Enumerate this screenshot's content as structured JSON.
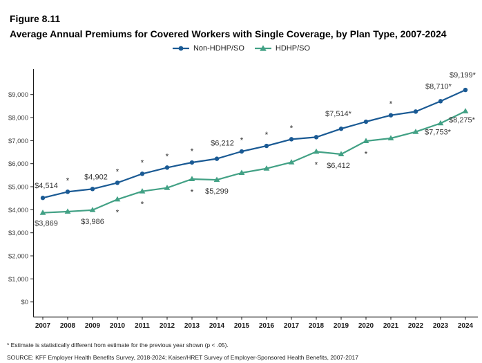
{
  "figure": {
    "number": "Figure 8.11",
    "title": "Average Annual Premiums for Covered Workers with Single Coverage, by Plan Type, 2007-2024"
  },
  "chart_data": {
    "type": "line",
    "title": "Average Annual Premiums for Covered Workers with Single Coverage, by Plan Type, 2007-2024",
    "xlabel": "",
    "ylabel": "",
    "ylim": [
      0,
      9000
    ],
    "ytick_step": 1000,
    "yticks": [
      "$0",
      "$1,000",
      "$2,000",
      "$3,000",
      "$4,000",
      "$5,000",
      "$6,000",
      "$7,000",
      "$8,000",
      "$9,000"
    ],
    "grid": false,
    "legend_position": "top-center",
    "x": [
      2007,
      2008,
      2009,
      2010,
      2011,
      2012,
      2013,
      2014,
      2015,
      2016,
      2017,
      2018,
      2019,
      2020,
      2021,
      2022,
      2023,
      2024
    ],
    "series": [
      {
        "name": "Non-HDHP/SO",
        "color": "#1A5A94",
        "marker": "circle",
        "values": [
          4514,
          4780,
          4902,
          5170,
          5560,
          5830,
          6050,
          6212,
          6530,
          6770,
          7060,
          7150,
          7514,
          7820,
          8100,
          8260,
          8710,
          9199
        ],
        "point_labels": [
          {
            "year": 2007,
            "text": "$4,514",
            "dx": 5,
            "dy": -14
          },
          {
            "year": 2009,
            "text": "$4,902",
            "dx": 5,
            "dy": -14
          },
          {
            "year": 2014,
            "text": "$6,212",
            "dx": 8,
            "dy": -19
          },
          {
            "year": 2019,
            "text": "$7,514*",
            "dx": -4,
            "dy": -18
          },
          {
            "year": 2023,
            "text": "$8,710*",
            "dx": -3,
            "dy": -18
          },
          {
            "year": 2024,
            "text": "$9,199*",
            "dx": -4,
            "dy": -18
          }
        ],
        "asterisk_years": [
          2008,
          2010,
          2011,
          2012,
          2013,
          2015,
          2016,
          2017,
          2021
        ],
        "asterisk_side": "above"
      },
      {
        "name": "HDHP/SO",
        "color": "#42A185",
        "marker": "triangle",
        "values": [
          3869,
          3920,
          3986,
          4450,
          4800,
          4950,
          5330,
          5299,
          5600,
          5790,
          6060,
          6520,
          6412,
          6980,
          7100,
          7380,
          7753,
          8275
        ],
        "point_labels": [
          {
            "year": 2007,
            "text": "$3,869",
            "dx": 5,
            "dy": 19
          },
          {
            "year": 2009,
            "text": "$3,986",
            "dx": 0,
            "dy": 20
          },
          {
            "year": 2014,
            "text": "$5,299",
            "dx": 0,
            "dy": 20
          },
          {
            "year": 2019,
            "text": "$6,412",
            "dx": -4,
            "dy": 20
          },
          {
            "year": 2023,
            "text": "$7,753*",
            "dx": -4,
            "dy": 16
          },
          {
            "year": 2024,
            "text": "$8,275*",
            "dx": -5,
            "dy": 16
          }
        ],
        "asterisk_years": [
          2010,
          2011,
          2013,
          2018,
          2020
        ],
        "asterisk_side": "below"
      }
    ]
  },
  "footnotes": {
    "significance": "* Estimate is statistically different from estimate for the previous year shown (p < .05).",
    "source": "SOURCE: KFF Employer Health Benefits Survey, 2018-2024; Kaiser/HRET Survey of Employer-Sponsored Health Benefits, 2007-2017"
  }
}
